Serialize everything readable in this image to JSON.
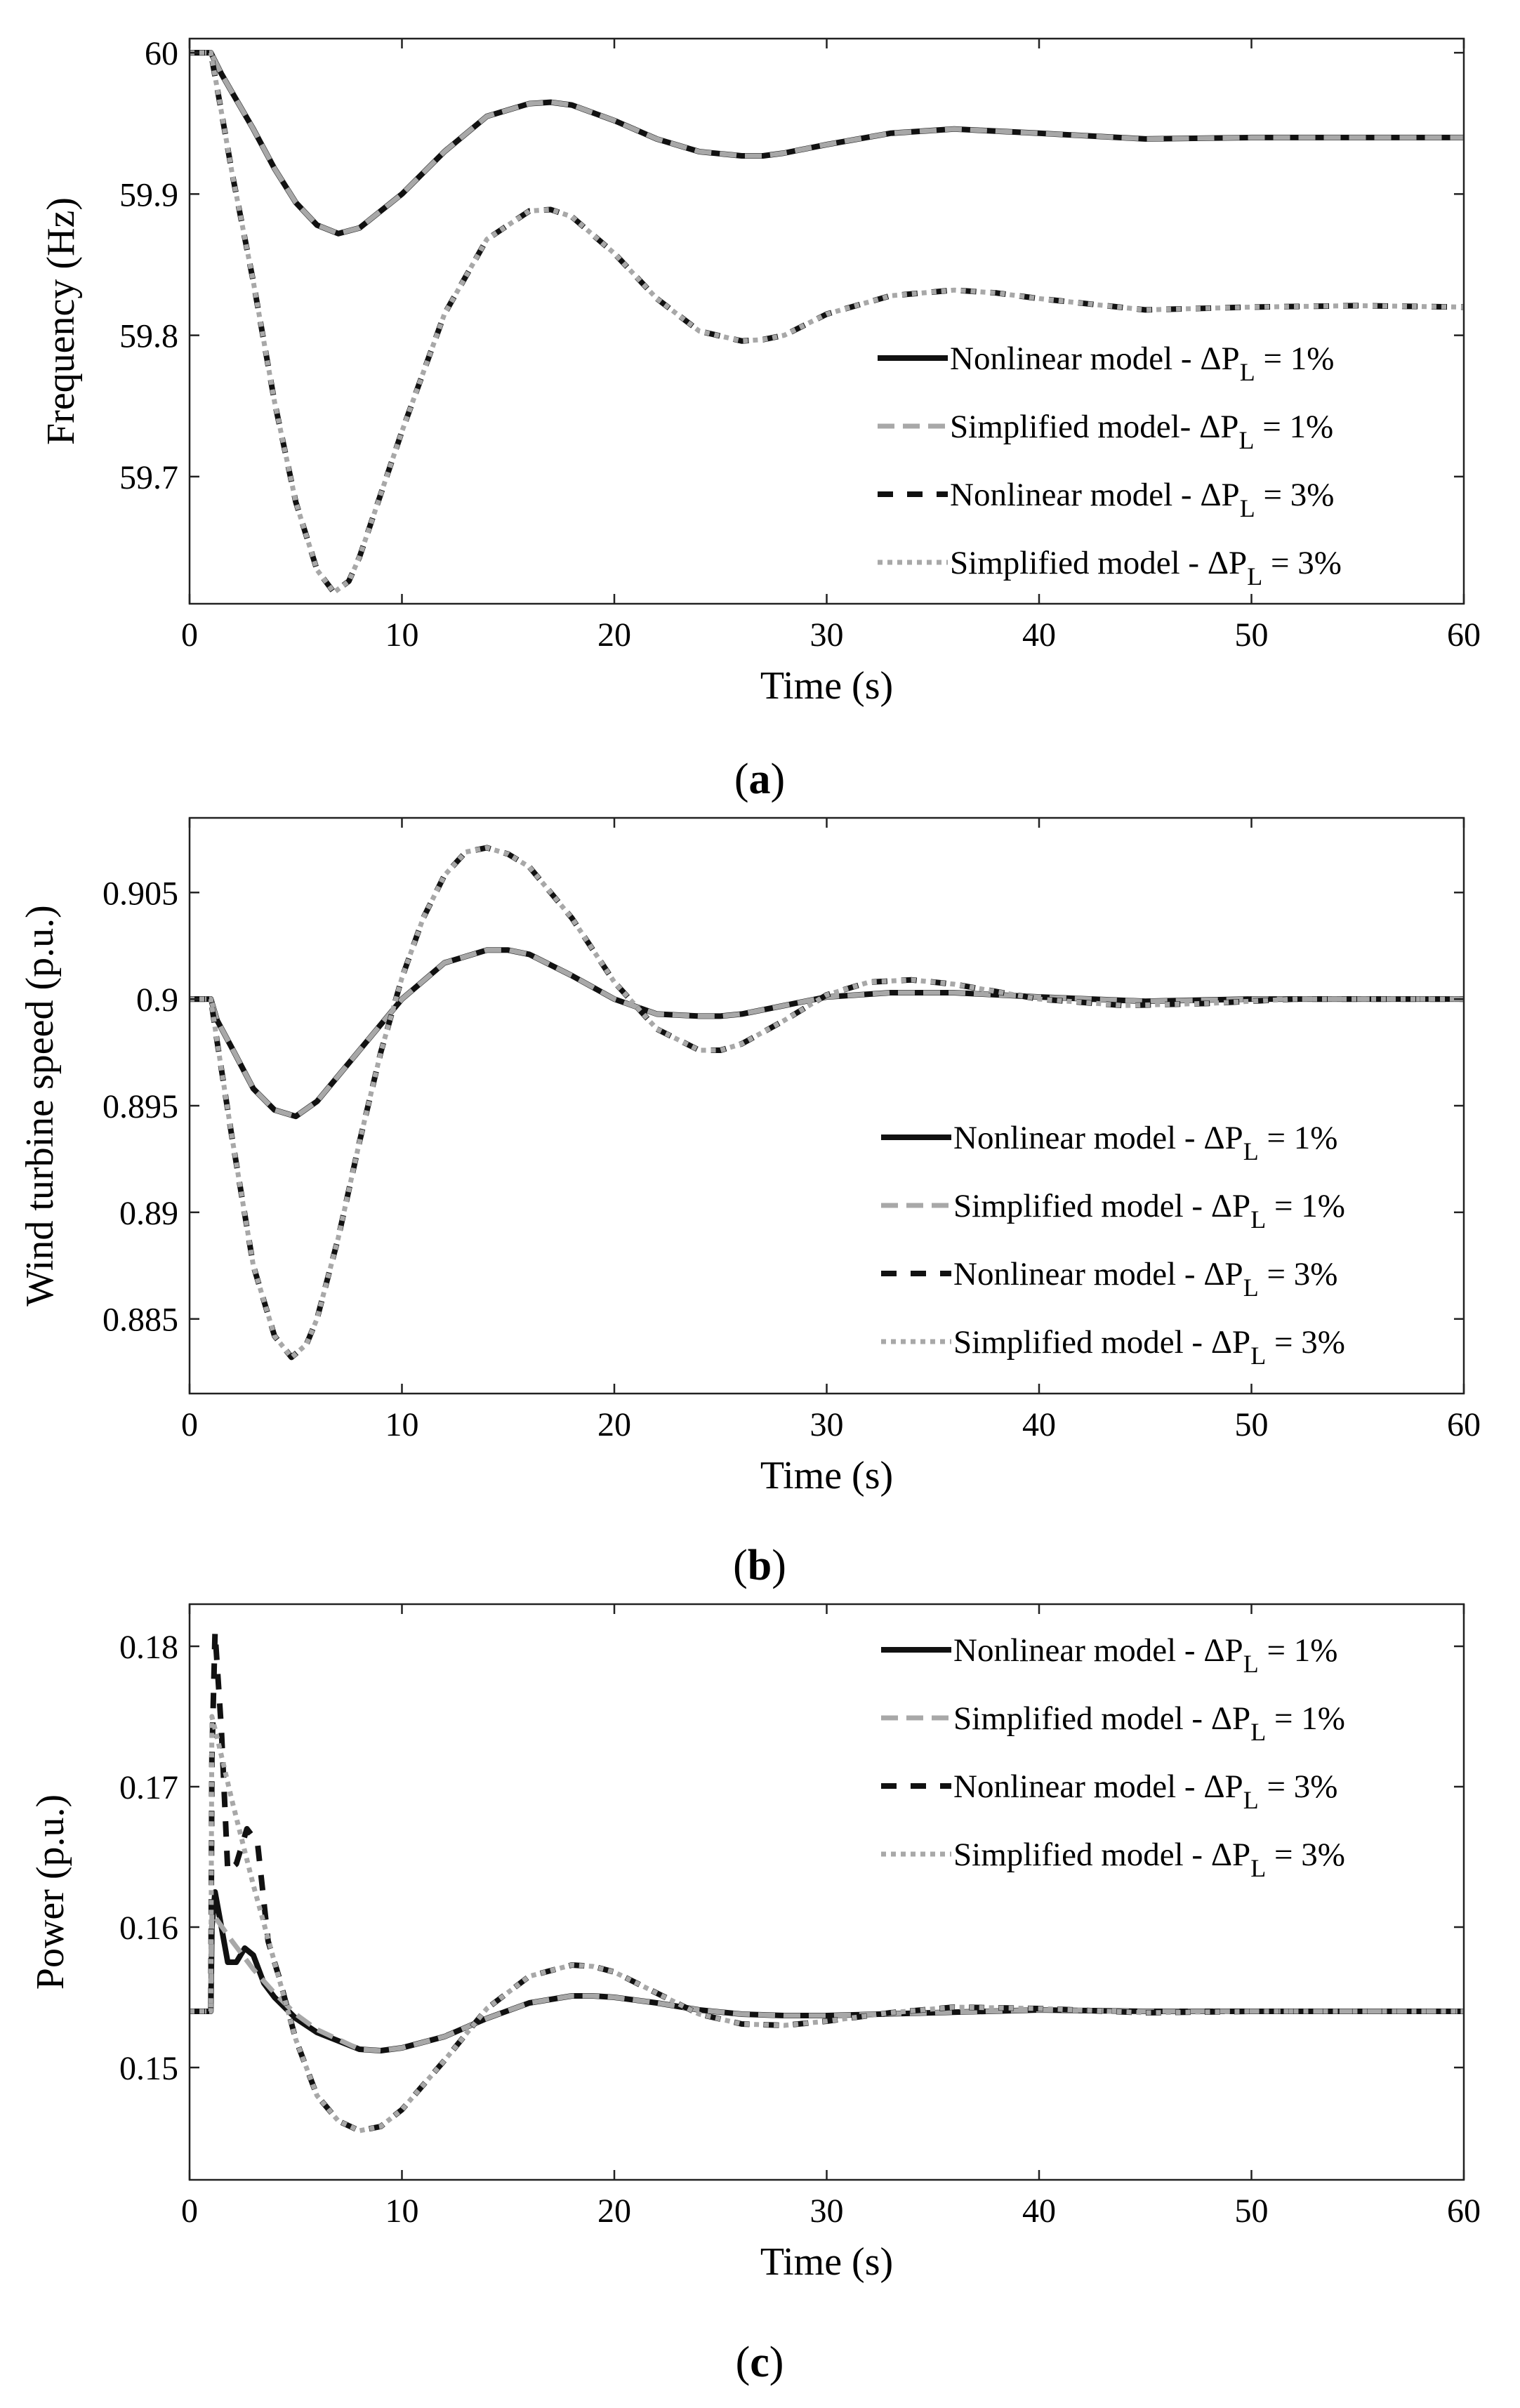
{
  "figure": {
    "captions": [
      {
        "open": "(",
        "letter": "a",
        "close": ")"
      },
      {
        "open": "(",
        "letter": "b",
        "close": ")"
      },
      {
        "open": "(",
        "letter": "c",
        "close": ")"
      }
    ],
    "legend_symbol": "ΔP",
    "legend_subscript": "L",
    "colors": {
      "nonlinear": "#111111",
      "simplified": "#a8a8a8",
      "axis": "#222222"
    }
  },
  "chart_data": [
    {
      "type": "line",
      "panel": "a",
      "title": "",
      "xlabel": "Time (s)",
      "ylabel": "Frequency (Hz)",
      "xlim": [
        0,
        60
      ],
      "ylim": [
        59.61,
        60.01
      ],
      "xticks": [
        0,
        10,
        20,
        30,
        40,
        50,
        60
      ],
      "xtick_labels": [
        "0",
        "10",
        "20",
        "30",
        "40",
        "50",
        "60"
      ],
      "yticks": [
        59.7,
        59.8,
        59.9,
        60
      ],
      "ytick_labels": [
        "59.7",
        "59.8",
        "59.9",
        "60"
      ],
      "legend": [
        {
          "prefix": "Nonlinear model - ",
          "suffix": " = 1%",
          "style": "solid-dark"
        },
        {
          "prefix": "Simplified model- ",
          "suffix": " = 1%",
          "style": "dash-gray"
        },
        {
          "prefix": "Nonlinear model - ",
          "suffix": " = 3%",
          "style": "dash-dark"
        },
        {
          "prefix": "Simplified model - ",
          "suffix": " = 3%",
          "style": "dot-gray"
        }
      ],
      "series": [
        {
          "name": "Nonlinear model - ΔPL = 1%",
          "style": "solid-dark",
          "x": [
            0,
            1,
            1.5,
            2,
            3,
            4,
            5,
            6,
            7,
            8,
            10,
            12,
            14,
            16,
            17,
            18,
            20,
            22,
            24,
            26,
            27,
            28,
            30,
            33,
            36,
            40,
            45,
            50,
            55,
            60
          ],
          "y": [
            60.0,
            60.0,
            59.985,
            59.972,
            59.946,
            59.918,
            59.894,
            59.878,
            59.872,
            59.876,
            59.9,
            59.93,
            59.955,
            59.964,
            59.965,
            59.963,
            59.952,
            59.939,
            59.93,
            59.927,
            59.927,
            59.929,
            59.935,
            59.943,
            59.946,
            59.943,
            59.939,
            59.94,
            59.94,
            59.94
          ]
        },
        {
          "name": "Simplified model- ΔPL = 1%",
          "style": "dash-gray",
          "x": [
            0,
            1,
            1.5,
            2,
            3,
            4,
            5,
            6,
            7,
            8,
            10,
            12,
            14,
            16,
            17,
            18,
            20,
            22,
            24,
            26,
            27,
            28,
            30,
            33,
            36,
            40,
            45,
            50,
            55,
            60
          ],
          "y": [
            60.0,
            60.0,
            59.985,
            59.972,
            59.946,
            59.918,
            59.894,
            59.878,
            59.872,
            59.876,
            59.9,
            59.93,
            59.955,
            59.964,
            59.965,
            59.963,
            59.952,
            59.939,
            59.93,
            59.927,
            59.927,
            59.929,
            59.935,
            59.943,
            59.946,
            59.943,
            59.939,
            59.94,
            59.94,
            59.94
          ]
        },
        {
          "name": "Nonlinear model - ΔPL = 3%",
          "style": "dash-dark",
          "x": [
            0,
            1,
            1.5,
            2,
            3,
            4,
            5,
            6,
            6.8,
            7.5,
            8,
            10,
            12,
            14,
            16,
            17,
            18,
            20,
            22,
            24,
            26,
            27,
            28,
            30,
            33,
            36,
            38,
            40,
            45,
            50,
            55,
            60
          ],
          "y": [
            60.0,
            60.0,
            59.958,
            59.915,
            59.838,
            59.753,
            59.682,
            59.634,
            59.618,
            59.626,
            59.643,
            59.732,
            59.815,
            59.868,
            59.888,
            59.889,
            59.884,
            59.858,
            59.826,
            59.803,
            59.796,
            59.797,
            59.8,
            59.815,
            59.828,
            59.832,
            59.83,
            59.826,
            59.818,
            59.82,
            59.821,
            59.82
          ]
        },
        {
          "name": "Simplified model - ΔPL = 3%",
          "style": "dot-gray",
          "x": [
            0,
            1,
            1.5,
            2,
            3,
            4,
            5,
            6,
            6.8,
            7.5,
            8,
            10,
            12,
            14,
            16,
            17,
            18,
            20,
            22,
            24,
            26,
            27,
            28,
            30,
            33,
            36,
            38,
            40,
            45,
            50,
            55,
            60
          ],
          "y": [
            60.0,
            60.0,
            59.958,
            59.915,
            59.838,
            59.753,
            59.682,
            59.634,
            59.618,
            59.626,
            59.643,
            59.732,
            59.815,
            59.868,
            59.888,
            59.889,
            59.884,
            59.858,
            59.826,
            59.803,
            59.796,
            59.797,
            59.8,
            59.815,
            59.828,
            59.832,
            59.83,
            59.826,
            59.818,
            59.82,
            59.821,
            59.82
          ]
        }
      ]
    },
    {
      "type": "line",
      "panel": "b",
      "title": "",
      "xlabel": "Time (s)",
      "ylabel": "Wind turbine speed (p.u.)",
      "xlim": [
        0,
        60
      ],
      "ylim": [
        0.8815,
        0.9085
      ],
      "xticks": [
        0,
        10,
        20,
        30,
        40,
        50,
        60
      ],
      "xtick_labels": [
        "0",
        "10",
        "20",
        "30",
        "40",
        "50",
        "60"
      ],
      "yticks": [
        0.885,
        0.89,
        0.895,
        0.9,
        0.905
      ],
      "ytick_labels": [
        "0.885",
        "0.89",
        "0.895",
        "0.9",
        "0.905"
      ],
      "legend": [
        {
          "prefix": "Nonlinear model - ",
          "suffix": " = 1%",
          "style": "solid-dark"
        },
        {
          "prefix": "Simplified model - ",
          "suffix": " = 1%",
          "style": "dash-gray"
        },
        {
          "prefix": "Nonlinear model - ",
          "suffix": " = 3%",
          "style": "dash-dark"
        },
        {
          "prefix": "Simplified model - ",
          "suffix": " = 3%",
          "style": "dot-gray"
        }
      ],
      "series": [
        {
          "name": "Nonlinear model - ΔPL = 1%",
          "style": "solid-dark",
          "x": [
            0,
            1,
            1.3,
            2,
            3,
            4,
            5,
            6,
            8,
            10,
            12,
            14,
            15,
            16,
            18,
            20,
            22,
            24,
            25,
            26,
            28,
            30,
            33,
            36,
            40,
            45,
            50,
            55,
            60
          ],
          "y": [
            0.9,
            0.9,
            0.899,
            0.8977,
            0.8958,
            0.8948,
            0.8945,
            0.8952,
            0.8976,
            0.9,
            0.9017,
            0.9023,
            0.9023,
            0.9021,
            0.9011,
            0.9,
            0.8993,
            0.8992,
            0.8992,
            0.8993,
            0.8997,
            0.9001,
            0.9003,
            0.9003,
            0.9001,
            0.8999,
            0.9,
            0.9,
            0.9
          ]
        },
        {
          "name": "Simplified model - ΔPL = 1%",
          "style": "dash-gray",
          "x": [
            0,
            1,
            1.3,
            2,
            3,
            4,
            5,
            6,
            8,
            10,
            12,
            14,
            15,
            16,
            18,
            20,
            22,
            24,
            25,
            26,
            28,
            30,
            33,
            36,
            40,
            45,
            50,
            55,
            60
          ],
          "y": [
            0.9,
            0.9,
            0.899,
            0.8977,
            0.8958,
            0.8948,
            0.8945,
            0.8952,
            0.8976,
            0.9,
            0.9017,
            0.9023,
            0.9023,
            0.9021,
            0.9011,
            0.9,
            0.8993,
            0.8992,
            0.8992,
            0.8993,
            0.8997,
            0.9001,
            0.9003,
            0.9003,
            0.9001,
            0.8999,
            0.9,
            0.9,
            0.9
          ]
        },
        {
          "name": "Nonlinear model - ΔPL = 3%",
          "style": "dash-dark",
          "x": [
            0,
            1,
            1.3,
            2,
            3,
            4,
            4.8,
            5.5,
            6,
            7,
            8,
            9,
            10,
            11,
            12,
            13,
            14,
            15,
            16,
            18,
            20,
            22,
            24,
            25,
            26,
            28,
            30,
            32,
            34,
            36,
            40,
            44,
            48,
            52,
            56,
            60
          ],
          "y": [
            0.9,
            0.9,
            0.898,
            0.8935,
            0.8875,
            0.8842,
            0.8832,
            0.8838,
            0.885,
            0.8888,
            0.8933,
            0.8975,
            0.901,
            0.9038,
            0.9058,
            0.9069,
            0.9071,
            0.9068,
            0.9062,
            0.9038,
            0.9008,
            0.8986,
            0.8976,
            0.8976,
            0.8979,
            0.899,
            0.9002,
            0.9008,
            0.9009,
            0.9007,
            0.9,
            0.8997,
            0.8998,
            0.9,
            0.9,
            0.9
          ]
        },
        {
          "name": "Simplified model - ΔPL = 3%",
          "style": "dot-gray",
          "x": [
            0,
            1,
            1.3,
            2,
            3,
            4,
            4.8,
            5.5,
            6,
            7,
            8,
            9,
            10,
            11,
            12,
            13,
            14,
            15,
            16,
            18,
            20,
            22,
            24,
            25,
            26,
            28,
            30,
            32,
            34,
            36,
            40,
            44,
            48,
            52,
            56,
            60
          ],
          "y": [
            0.9,
            0.9,
            0.898,
            0.8935,
            0.8875,
            0.8842,
            0.8832,
            0.8838,
            0.885,
            0.8888,
            0.8933,
            0.8975,
            0.901,
            0.9038,
            0.9058,
            0.9069,
            0.9071,
            0.9068,
            0.9062,
            0.9038,
            0.9008,
            0.8986,
            0.8976,
            0.8976,
            0.8979,
            0.899,
            0.9002,
            0.9008,
            0.9009,
            0.9007,
            0.9,
            0.8997,
            0.8998,
            0.9,
            0.9,
            0.9
          ]
        }
      ]
    },
    {
      "type": "line",
      "panel": "c",
      "title": "",
      "xlabel": "Time (s)",
      "ylabel": "Power (p.u.)",
      "xlim": [
        0,
        60
      ],
      "ylim": [
        0.142,
        0.183
      ],
      "xticks": [
        0,
        10,
        20,
        30,
        40,
        50,
        60
      ],
      "xtick_labels": [
        "0",
        "10",
        "20",
        "30",
        "40",
        "50",
        "60"
      ],
      "yticks": [
        0.15,
        0.16,
        0.17,
        0.18
      ],
      "ytick_labels": [
        "0.15",
        "0.16",
        "0.17",
        "0.18"
      ],
      "legend": [
        {
          "prefix": "Nonlinear model - ",
          "suffix": " = 1%",
          "style": "solid-dark"
        },
        {
          "prefix": "Simplified model - ",
          "suffix": " = 1%",
          "style": "dash-gray"
        },
        {
          "prefix": "Nonlinear model - ",
          "suffix": " = 3%",
          "style": "dash-dark"
        },
        {
          "prefix": "Simplified model - ",
          "suffix": " = 3%",
          "style": "dot-gray"
        }
      ],
      "series": [
        {
          "name": "Nonlinear model - ΔPL = 1%",
          "style": "solid-dark",
          "x": [
            0,
            1,
            1.05,
            1.2,
            1.5,
            1.8,
            2.2,
            2.6,
            3,
            3.5,
            4,
            5,
            6,
            8,
            9,
            10,
            12,
            14,
            16,
            18,
            19,
            20,
            22,
            24,
            26,
            28,
            30,
            35,
            40,
            45,
            50,
            55,
            60
          ],
          "y": [
            0.154,
            0.154,
            0.16,
            0.1625,
            0.16,
            0.1575,
            0.1575,
            0.1585,
            0.158,
            0.156,
            0.155,
            0.1535,
            0.1525,
            0.1513,
            0.1512,
            0.1514,
            0.1522,
            0.1535,
            0.1546,
            0.1551,
            0.1551,
            0.155,
            0.1546,
            0.1541,
            0.1538,
            0.1537,
            0.1537,
            0.1539,
            0.1541,
            0.154,
            0.154,
            0.154,
            0.154
          ]
        },
        {
          "name": "Simplified model - ΔPL = 1%",
          "style": "dash-gray",
          "x": [
            0,
            1,
            1.05,
            1.3,
            2,
            3,
            4,
            5,
            6,
            8,
            9,
            10,
            12,
            14,
            16,
            18,
            19,
            20,
            22,
            24,
            26,
            28,
            30,
            35,
            40,
            45,
            50,
            55,
            60
          ],
          "y": [
            0.154,
            0.154,
            0.161,
            0.1605,
            0.159,
            0.157,
            0.1553,
            0.1538,
            0.1527,
            0.1513,
            0.1512,
            0.1514,
            0.1522,
            0.1535,
            0.1546,
            0.1551,
            0.1551,
            0.155,
            0.1546,
            0.1541,
            0.1538,
            0.1537,
            0.1537,
            0.1539,
            0.1541,
            0.154,
            0.154,
            0.154,
            0.154
          ]
        },
        {
          "name": "Nonlinear model - ΔPL = 3%",
          "style": "dash-dark",
          "x": [
            0,
            1,
            1.05,
            1.2,
            1.5,
            1.8,
            2.2,
            2.7,
            3.2,
            3.7,
            4.2,
            5,
            6,
            7,
            8,
            9,
            10,
            12,
            14,
            16,
            18,
            19,
            20,
            22,
            24,
            26,
            28,
            30,
            33,
            36,
            40,
            45,
            50,
            55,
            60
          ],
          "y": [
            0.154,
            0.154,
            0.172,
            0.181,
            0.174,
            0.164,
            0.1645,
            0.167,
            0.166,
            0.159,
            0.1565,
            0.152,
            0.148,
            0.1462,
            0.1455,
            0.1458,
            0.147,
            0.1505,
            0.1542,
            0.1565,
            0.1573,
            0.1572,
            0.1568,
            0.1553,
            0.1538,
            0.1531,
            0.153,
            0.1533,
            0.1539,
            0.1543,
            0.1542,
            0.1539,
            0.154,
            0.154,
            0.154
          ]
        },
        {
          "name": "Simplified model - ΔPL = 3%",
          "style": "dot-gray",
          "x": [
            0,
            1,
            1.05,
            1.3,
            2,
            3,
            4,
            5,
            6,
            7,
            8,
            9,
            10,
            12,
            14,
            16,
            18,
            19,
            20,
            22,
            24,
            26,
            28,
            30,
            33,
            36,
            40,
            45,
            50,
            55,
            60
          ],
          "y": [
            0.154,
            0.154,
            0.175,
            0.1735,
            0.169,
            0.163,
            0.1575,
            0.152,
            0.148,
            0.1462,
            0.1455,
            0.1458,
            0.147,
            0.1505,
            0.1542,
            0.1565,
            0.1573,
            0.1572,
            0.1568,
            0.1553,
            0.1538,
            0.1531,
            0.153,
            0.1533,
            0.1539,
            0.1543,
            0.1542,
            0.1539,
            0.154,
            0.154,
            0.154
          ]
        }
      ]
    }
  ]
}
